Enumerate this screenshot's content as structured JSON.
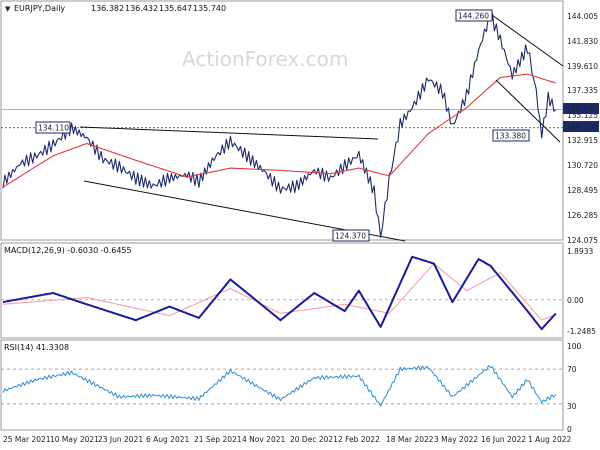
{
  "chart_data": [
    {
      "type": "candlestick",
      "title": "EURJPY,Daily",
      "ohlc_readout": {
        "open": "136.382",
        "high": "136.432",
        "low": "135.647",
        "close": "135.740"
      },
      "y_ticks": [
        "144.005",
        "141.830",
        "139.610",
        "137.335",
        "135.125",
        "132.915",
        "130.720",
        "128.495",
        "126.285",
        "124.075"
      ],
      "ylim": [
        124.075,
        144.005
      ],
      "price_labels": {
        "last": "135.740",
        "support": "134.110"
      },
      "annotations": [
        "144.260",
        "134.110",
        "133.380",
        "124.370"
      ],
      "close_series_approx": [
        {
          "date": "2021-03-25",
          "value": 129.2
        },
        {
          "date": "2021-04-10",
          "value": 130.9
        },
        {
          "date": "2021-04-25",
          "value": 131.6
        },
        {
          "date": "2021-05-10",
          "value": 132.6
        },
        {
          "date": "2021-05-27",
          "value": 134.1
        },
        {
          "date": "2021-06-10",
          "value": 133.2
        },
        {
          "date": "2021-06-25",
          "value": 131.3
        },
        {
          "date": "2021-07-10",
          "value": 130.6
        },
        {
          "date": "2021-07-25",
          "value": 129.6
        },
        {
          "date": "2021-08-10",
          "value": 128.9
        },
        {
          "date": "2021-08-25",
          "value": 129.6
        },
        {
          "date": "2021-09-10",
          "value": 129.9
        },
        {
          "date": "2021-09-21",
          "value": 129.3
        },
        {
          "date": "2021-10-05",
          "value": 131.4
        },
        {
          "date": "2021-10-20",
          "value": 132.9
        },
        {
          "date": "2021-11-04",
          "value": 131.6
        },
        {
          "date": "2021-11-20",
          "value": 130.2
        },
        {
          "date": "2021-12-05",
          "value": 128.6
        },
        {
          "date": "2021-12-20",
          "value": 128.9
        },
        {
          "date": "2022-01-05",
          "value": 130.3
        },
        {
          "date": "2022-01-20",
          "value": 129.6
        },
        {
          "date": "2022-02-02",
          "value": 130.7
        },
        {
          "date": "2022-02-15",
          "value": 131.7
        },
        {
          "date": "2022-03-01",
          "value": 128.4
        },
        {
          "date": "2022-03-07",
          "value": 124.4
        },
        {
          "date": "2022-03-15",
          "value": 129.5
        },
        {
          "date": "2022-03-25",
          "value": 134.4
        },
        {
          "date": "2022-04-05",
          "value": 135.9
        },
        {
          "date": "2022-04-20",
          "value": 138.5
        },
        {
          "date": "2022-05-03",
          "value": 137.3
        },
        {
          "date": "2022-05-12",
          "value": 134.2
        },
        {
          "date": "2022-05-25",
          "value": 137.0
        },
        {
          "date": "2022-06-05",
          "value": 141.0
        },
        {
          "date": "2022-06-16",
          "value": 144.2
        },
        {
          "date": "2022-06-25",
          "value": 142.0
        },
        {
          "date": "2022-07-06",
          "value": 138.8
        },
        {
          "date": "2022-07-20",
          "value": 141.3
        },
        {
          "date": "2022-07-28",
          "value": 137.3
        },
        {
          "date": "2022-08-02",
          "value": 133.4
        },
        {
          "date": "2022-08-08",
          "value": 136.8
        },
        {
          "date": "2022-08-15",
          "value": 135.7
        }
      ],
      "moving_average_approx": [
        {
          "date": "2021-03-25",
          "value": 128.8
        },
        {
          "date": "2021-05-10",
          "value": 131.6
        },
        {
          "date": "2021-06-10",
          "value": 132.7
        },
        {
          "date": "2021-07-25",
          "value": 131.2
        },
        {
          "date": "2021-09-10",
          "value": 129.7
        },
        {
          "date": "2021-10-20",
          "value": 130.5
        },
        {
          "date": "2021-12-05",
          "value": 130.3
        },
        {
          "date": "2022-01-20",
          "value": 130.0
        },
        {
          "date": "2022-02-15",
          "value": 130.5
        },
        {
          "date": "2022-03-15",
          "value": 129.8
        },
        {
          "date": "2022-04-20",
          "value": 133.6
        },
        {
          "date": "2022-05-25",
          "value": 135.9
        },
        {
          "date": "2022-06-25",
          "value": 138.6
        },
        {
          "date": "2022-07-20",
          "value": 138.9
        },
        {
          "date": "2022-08-15",
          "value": 138.1
        }
      ]
    },
    {
      "type": "line",
      "title": "MACD(12,26,9) -0.6030 -0.6455",
      "y_ticks": [
        "1.8933",
        "0.00",
        "-1.2485"
      ],
      "ylim": [
        -1.6,
        2.2
      ],
      "series": [
        {
          "name": "MACD",
          "values_approx": [
            {
              "date": "2021-03-25",
              "value": -0.1
            },
            {
              "date": "2021-05-10",
              "value": 0.3
            },
            {
              "date": "2021-06-10",
              "value": -0.2
            },
            {
              "date": "2021-07-25",
              "value": -0.9
            },
            {
              "date": "2021-08-25",
              "value": -0.3
            },
            {
              "date": "2021-09-21",
              "value": -0.8
            },
            {
              "date": "2021-10-20",
              "value": 0.9
            },
            {
              "date": "2021-12-05",
              "value": -0.9
            },
            {
              "date": "2022-01-05",
              "value": 0.3
            },
            {
              "date": "2022-02-02",
              "value": -0.5
            },
            {
              "date": "2022-02-15",
              "value": 0.4
            },
            {
              "date": "2022-03-07",
              "value": -1.2
            },
            {
              "date": "2022-04-05",
              "value": 1.9
            },
            {
              "date": "2022-04-25",
              "value": 1.6
            },
            {
              "date": "2022-05-12",
              "value": -0.1
            },
            {
              "date": "2022-06-05",
              "value": 1.8
            },
            {
              "date": "2022-06-16",
              "value": 1.5
            },
            {
              "date": "2022-07-20",
              "value": -0.5
            },
            {
              "date": "2022-08-02",
              "value": -1.3
            },
            {
              "date": "2022-08-15",
              "value": -0.6
            }
          ]
        },
        {
          "name": "Signal",
          "values_approx": [
            {
              "date": "2021-03-25",
              "value": -0.2
            },
            {
              "date": "2021-06-10",
              "value": 0.1
            },
            {
              "date": "2021-08-25",
              "value": -0.7
            },
            {
              "date": "2021-10-20",
              "value": 0.5
            },
            {
              "date": "2021-12-05",
              "value": -0.6
            },
            {
              "date": "2022-02-02",
              "value": -0.2
            },
            {
              "date": "2022-03-15",
              "value": -0.6
            },
            {
              "date": "2022-04-25",
              "value": 1.6
            },
            {
              "date": "2022-05-25",
              "value": 0.4
            },
            {
              "date": "2022-06-25",
              "value": 1.2
            },
            {
              "date": "2022-08-02",
              "value": -0.9
            },
            {
              "date": "2022-08-15",
              "value": -0.65
            }
          ]
        }
      ]
    },
    {
      "type": "line",
      "title": "RSI(14) 41.3308",
      "y_ticks": [
        "100",
        "70",
        "30",
        "0"
      ],
      "ylim": [
        0,
        100
      ],
      "series": [
        {
          "name": "RSI",
          "values_approx": [
            {
              "date": "2021-03-25",
              "value": 45
            },
            {
              "date": "2021-04-25",
              "value": 58
            },
            {
              "date": "2021-05-27",
              "value": 66
            },
            {
              "date": "2021-07-10",
              "value": 38
            },
            {
              "date": "2021-08-10",
              "value": 40
            },
            {
              "date": "2021-09-21",
              "value": 36
            },
            {
              "date": "2021-10-20",
              "value": 68
            },
            {
              "date": "2021-12-05",
              "value": 35
            },
            {
              "date": "2022-01-05",
              "value": 60
            },
            {
              "date": "2022-02-15",
              "value": 62
            },
            {
              "date": "2022-03-07",
              "value": 28
            },
            {
              "date": "2022-03-25",
              "value": 70
            },
            {
              "date": "2022-04-20",
              "value": 72
            },
            {
              "date": "2022-05-12",
              "value": 38
            },
            {
              "date": "2022-06-16",
              "value": 74
            },
            {
              "date": "2022-07-06",
              "value": 38
            },
            {
              "date": "2022-07-20",
              "value": 58
            },
            {
              "date": "2022-08-02",
              "value": 32
            },
            {
              "date": "2022-08-15",
              "value": 41
            }
          ]
        }
      ]
    }
  ],
  "x_axis_labels": [
    "25 Mar 2021",
    "10 May 2021",
    "23 Jun 2021",
    "6 Aug 2021",
    "21 Sep 2021",
    "4 Nov 2021",
    "20 Dec 2021",
    "2 Feb 2022",
    "18 Mar 2022",
    "3 May 2022",
    "16 Jun 2022",
    "1 Aug 2022"
  ],
  "watermark": "ActionForex.com",
  "colors": {
    "price_line": "#1a2a6c",
    "moving_average": "#e03b3b",
    "macd": "#1a1a9e",
    "signal": "#f29aa6",
    "rsi": "#2a8fd8",
    "trendline": "#111111",
    "price_label_bg": "#1a2a6c",
    "label_text": "#ffffff"
  }
}
